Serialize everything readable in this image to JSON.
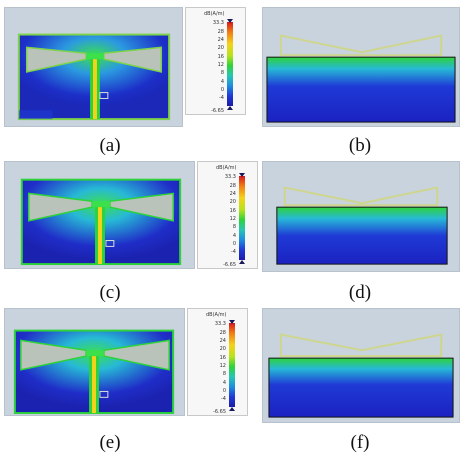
{
  "figure": {
    "captions": [
      "(a)",
      "(b)",
      "(c)",
      "(d)",
      "(e)",
      "(f)"
    ]
  },
  "legend": {
    "unit": "dB(A/m)",
    "max_label": "33.3",
    "min_label": "-6.65",
    "ticks": [
      "28",
      "24",
      "20",
      "16",
      "12",
      "8",
      "4",
      "0",
      "-4"
    ]
  },
  "colors": {
    "field_low": "#1f2ec8",
    "field_mid": "#2ed23a",
    "field_high": "#f4d21c",
    "background_panel": "#c9d3dd",
    "antenna_outline": "#e8f05a"
  }
}
